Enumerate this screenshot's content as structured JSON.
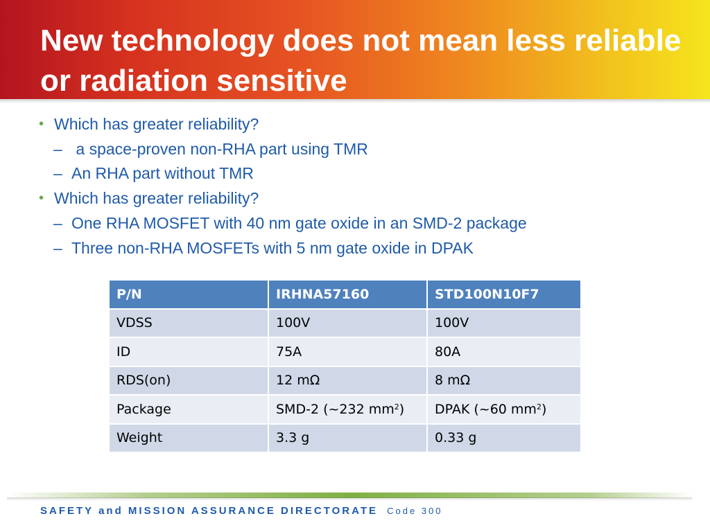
{
  "slide": {
    "title": "New technology does not mean less reliable or radiation sensitive"
  },
  "bullets": [
    {
      "marker": "•",
      "text": "Which has greater reliability?"
    },
    {
      "marker": "–",
      "text": " a space-proven non-RHA part using TMR"
    },
    {
      "marker": "–",
      "text": "An RHA part without TMR"
    },
    {
      "marker": "•",
      "text": "Which has greater reliability?"
    },
    {
      "marker": "–",
      "text": "One RHA MOSFET with 40 nm gate oxide in an SMD-2 package"
    },
    {
      "marker": "–",
      "text": "Three non-RHA MOSFETs with 5 nm gate oxide in DPAK"
    }
  ],
  "table": {
    "header": [
      "P/N",
      "IRHNA57160",
      "STD100N10F7"
    ],
    "rows": [
      {
        "label": "VDSS",
        "a": "100V",
        "b": "100V"
      },
      {
        "label": "ID",
        "a": "75A",
        "b": "80A"
      },
      {
        "label": "RDS(on)",
        "a": "12 mΩ",
        "b": "8 mΩ"
      },
      {
        "label": "Package",
        "a": "SMD-2 (~232 mm",
        "a_sup": "2",
        "a_end": ")",
        "b": "DPAK (~60 mm",
        "b_sup": "2",
        "b_end": ")"
      },
      {
        "label": "Weight",
        "a": "3.3 g",
        "b": "0.33 g"
      }
    ]
  },
  "footer": {
    "directorate": "SAFETY and MISSION ASSURANCE DIRECTORATE",
    "code": "Code 300"
  },
  "colors": {
    "header_gradient_start": "#b3141f",
    "header_gradient_end": "#f5e51c",
    "body_text": "#1f5aa8",
    "bullet_marker": "#6aa84f",
    "table_header": "#4f81bd",
    "table_row_odd": "#d0d8e8",
    "table_row_even": "#e9edf4",
    "footer_line": "#7fb043"
  }
}
